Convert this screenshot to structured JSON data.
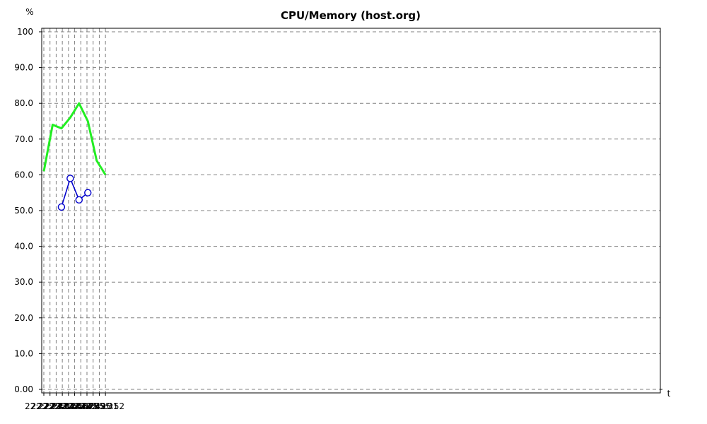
{
  "chart_data": {
    "type": "line",
    "title": "CPU/Memory (host.org)",
    "xlabel": "t",
    "ylabel": "%",
    "x_tick_labels": [
      "22:22:22",
      "22:22:43",
      "22:23:04",
      "22:23:25",
      "22:23:46",
      "22:24:07",
      "22:24:28",
      "22:24:49",
      "22:25:10",
      "22:25:31",
      "22:25:52"
    ],
    "y_tick_labels": [
      "0.00",
      "10.0",
      "20.0",
      "30.0",
      "40.0",
      "50.0",
      "60.0",
      "70.0",
      "80.0",
      "90.0",
      "100"
    ],
    "ylim": [
      0,
      100
    ],
    "grid": true,
    "series": [
      {
        "color": "#22ee22",
        "markers": false,
        "points": [
          {
            "t": "22:22:22",
            "v": 61
          },
          {
            "t": "22:22:52",
            "v": 74
          },
          {
            "t": "22:23:22",
            "v": 73
          },
          {
            "t": "22:23:52",
            "v": 76
          },
          {
            "t": "22:24:22",
            "v": 80
          },
          {
            "t": "22:24:52",
            "v": 75
          },
          {
            "t": "22:25:22",
            "v": 64
          },
          {
            "t": "22:25:52",
            "v": 60
          }
        ]
      },
      {
        "color": "#0000cc",
        "markers": true,
        "points": [
          {
            "t": "22:23:22",
            "v": 51
          },
          {
            "t": "22:23:52",
            "v": 59
          },
          {
            "t": "22:24:22",
            "v": 53
          },
          {
            "t": "22:24:52",
            "v": 55
          }
        ]
      }
    ]
  }
}
